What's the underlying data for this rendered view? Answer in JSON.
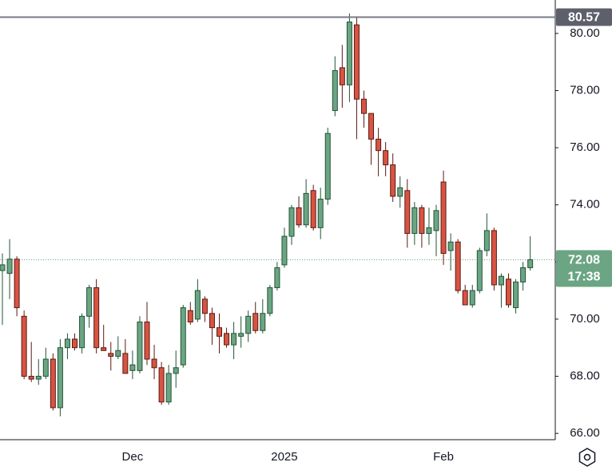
{
  "chart_data": {
    "type": "candlestick",
    "categories": [
      null,
      null,
      null,
      null,
      null,
      null,
      null,
      null,
      null,
      null,
      null,
      null,
      null,
      null,
      null,
      null,
      null,
      null,
      "Dec",
      null,
      null,
      null,
      null,
      null,
      null,
      null,
      null,
      null,
      null,
      null,
      null,
      null,
      null,
      null,
      null,
      null,
      null,
      null,
      null,
      "2025",
      null,
      null,
      null,
      null,
      null,
      null,
      null,
      null,
      null,
      null,
      null,
      null,
      null,
      null,
      null,
      null,
      null,
      null,
      null,
      null,
      null,
      "Feb",
      null,
      null,
      null,
      null,
      null,
      null,
      null,
      null,
      null,
      null,
      null,
      null
    ],
    "open": [
      71.7,
      71.6,
      72.1,
      70.1,
      68.0,
      67.9,
      68.0,
      68.6,
      66.9,
      69.0,
      69.3,
      69.0,
      70.1,
      71.1,
      69.0,
      68.8,
      68.7,
      68.8,
      68.2,
      68.2,
      69.9,
      68.6,
      68.3,
      67.1,
      68.1,
      68.4,
      70.3,
      70.0,
      70.7,
      70.2,
      69.7,
      69.5,
      69.1,
      69.4,
      69.5,
      70.2,
      69.6,
      70.2,
      71.1,
      71.9,
      72.9,
      73.9,
      73.3,
      74.5,
      73.2,
      74.2,
      77.3,
      78.8,
      78.2,
      80.3,
      77.7,
      77.2,
      76.3,
      75.9,
      75.4,
      74.3,
      74.5,
      73.0,
      73.9,
      73.0,
      73.1,
      74.8,
      72.4,
      72.7,
      71.0,
      70.5,
      71.0,
      72.4,
      73.1,
      71.2,
      71.4,
      70.4,
      71.3,
      71.8
    ],
    "high": [
      72.3,
      72.8,
      72.2,
      70.3,
      69.2,
      68.6,
      69.0,
      68.8,
      69.3,
      69.5,
      69.5,
      70.2,
      71.2,
      71.4,
      69.8,
      69.2,
      69.4,
      69.3,
      68.9,
      70.1,
      70.6,
      69.1,
      68.5,
      68.4,
      68.9,
      70.5,
      70.6,
      71.4,
      70.8,
      70.4,
      70.2,
      69.7,
      69.9,
      70.1,
      70.3,
      70.6,
      70.7,
      71.2,
      72.0,
      73.2,
      74.0,
      74.3,
      74.9,
      74.7,
      74.6,
      76.7,
      79.2,
      79.6,
      80.7,
      80.6,
      78.0,
      77.2,
      76.7,
      76.2,
      75.8,
      75.0,
      74.9,
      74.1,
      74.0,
      73.9,
      74.0,
      75.2,
      73.0,
      72.8,
      71.2,
      71.2,
      72.5,
      73.7,
      73.2,
      71.6,
      71.6,
      71.4,
      72.0,
      72.9
    ],
    "low": [
      69.8,
      70.7,
      70.1,
      67.9,
      67.8,
      67.7,
      67.9,
      66.8,
      66.6,
      68.6,
      68.9,
      68.8,
      69.7,
      68.8,
      68.9,
      68.2,
      68.6,
      68.1,
      67.9,
      68.1,
      68.4,
      67.9,
      67.0,
      67.0,
      67.6,
      68.3,
      69.8,
      69.9,
      69.9,
      69.1,
      68.8,
      69.0,
      68.6,
      69.0,
      69.2,
      69.5,
      69.5,
      70.1,
      71.0,
      71.8,
      72.6,
      73.2,
      73.2,
      73.1,
      72.8,
      74.0,
      77.1,
      77.4,
      77.6,
      76.3,
      76.7,
      75.4,
      75.0,
      75.0,
      74.1,
      73.9,
      72.5,
      72.6,
      72.5,
      72.6,
      72.2,
      71.9,
      71.7,
      70.9,
      70.5,
      70.4,
      70.9,
      72.2,
      71.0,
      70.4,
      70.4,
      70.2,
      71.0,
      71.7
    ],
    "close": [
      71.9,
      72.1,
      70.4,
      68.0,
      67.9,
      68.0,
      68.6,
      66.9,
      69.0,
      69.3,
      69.0,
      70.1,
      71.1,
      69.0,
      68.9,
      68.7,
      68.9,
      68.1,
      68.4,
      69.9,
      68.6,
      68.3,
      67.1,
      68.1,
      68.3,
      70.4,
      69.9,
      71.0,
      70.2,
      69.7,
      69.4,
      69.1,
      69.5,
      69.5,
      70.1,
      69.6,
      70.2,
      71.1,
      71.8,
      72.9,
      73.9,
      73.3,
      74.4,
      73.2,
      74.2,
      76.5,
      78.7,
      78.2,
      80.4,
      77.7,
      77.2,
      76.3,
      75.9,
      75.4,
      74.3,
      74.6,
      73.0,
      73.9,
      73.0,
      73.2,
      73.8,
      72.3,
      72.7,
      71.0,
      70.5,
      71.0,
      72.4,
      73.1,
      71.2,
      71.5,
      70.5,
      71.3,
      71.8,
      72.08
    ],
    "ylim": [
      65.78,
      81.17
    ],
    "yticks": [
      {
        "value": 66,
        "label": "66.00"
      },
      {
        "value": 68,
        "label": "68.00"
      },
      {
        "value": 70,
        "label": "70.00"
      },
      {
        "value": 72,
        "label": "72.00"
      },
      {
        "value": 74,
        "label": "74.00"
      },
      {
        "value": 76,
        "label": "76.00"
      },
      {
        "value": 78,
        "label": "78.00"
      },
      {
        "value": 80,
        "label": "80.00"
      }
    ],
    "high_line": 80.57,
    "last_price": 72.08,
    "countdown": "17:38",
    "up_color": "#6ba583",
    "down_color": "#d75442",
    "up_border": "#225437",
    "down_border": "#5b1a13"
  }
}
